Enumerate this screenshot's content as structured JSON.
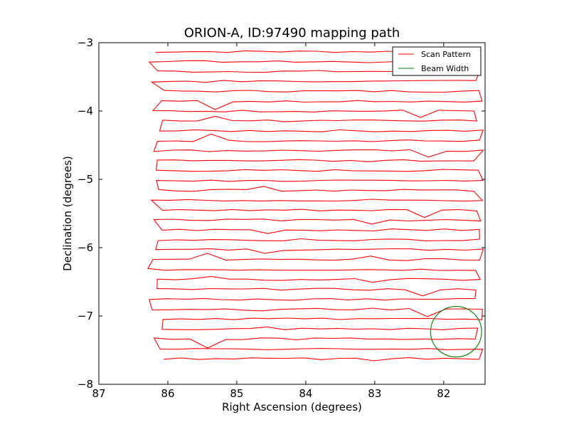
{
  "chart_data": {
    "type": "line",
    "title": "ORION-A, ID:97490 mapping path",
    "xlabel": "Right Ascension (degrees)",
    "ylabel": "Declination (degrees)",
    "xlim": [
      87,
      81.4
    ],
    "ylim": [
      -8,
      -3
    ],
    "xticks": [
      87,
      86,
      85,
      84,
      83,
      82
    ],
    "xtick_labels": [
      "87",
      "86",
      "85",
      "84",
      "83",
      "82"
    ],
    "yticks": [
      -3,
      -4,
      -5,
      -6,
      -7,
      -8
    ],
    "ytick_labels": [
      "−3",
      "−4",
      "−5",
      "−6",
      "−7",
      "−8"
    ],
    "grid": false,
    "legend_position": "top-right",
    "series": [
      {
        "name": "Scan Pattern",
        "color": "#ff0000",
        "style": "zigzag raster scan",
        "x_range": [
          86.3,
          81.4
        ],
        "dec_start": -3.13,
        "dec_end": -7.64,
        "n_rows": 32,
        "row_step": -0.145,
        "turn_points_ra": [
          86.3,
          81.42
        ]
      },
      {
        "name": "Beam Width",
        "color": "#008000",
        "shape": "circle",
        "center": [
          81.82,
          -7.23
        ],
        "radius_deg": 0.37
      }
    ]
  }
}
